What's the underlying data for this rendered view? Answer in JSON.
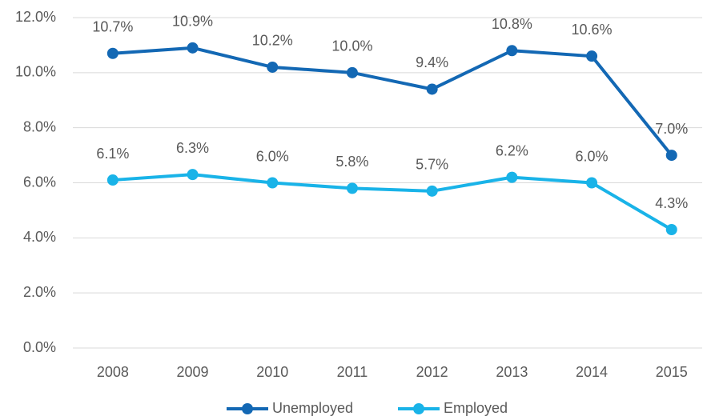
{
  "chart_data": {
    "type": "line",
    "categories": [
      "2008",
      "2009",
      "2010",
      "2011",
      "2012",
      "2013",
      "2014",
      "2015"
    ],
    "series": [
      {
        "name": "Unemployed",
        "color": "#1368b4",
        "values": [
          10.7,
          10.9,
          10.2,
          10.0,
          9.4,
          10.8,
          10.6,
          7.0
        ],
        "value_labels": [
          "10.7%",
          "10.9%",
          "10.2%",
          "10.0%",
          "9.4%",
          "10.8%",
          "10.6%",
          "7.0%"
        ]
      },
      {
        "name": "Employed",
        "color": "#19b3e8",
        "values": [
          6.1,
          6.3,
          6.0,
          5.8,
          5.7,
          6.2,
          6.0,
          4.3
        ],
        "value_labels": [
          "6.1%",
          "6.3%",
          "6.0%",
          "5.8%",
          "5.7%",
          "6.2%",
          "6.0%",
          "4.3%"
        ]
      }
    ],
    "ylim": [
      0,
      12
    ],
    "yticks": [
      {
        "value": 0,
        "label": "0.0%"
      },
      {
        "value": 2,
        "label": "2.0%"
      },
      {
        "value": 4,
        "label": "4.0%"
      },
      {
        "value": 6,
        "label": "6.0%"
      },
      {
        "value": 8,
        "label": "8.0%"
      },
      {
        "value": 10,
        "label": "10.0%"
      },
      {
        "value": 12,
        "label": "12.0%"
      }
    ],
    "grid": true,
    "legend": "bottom"
  }
}
